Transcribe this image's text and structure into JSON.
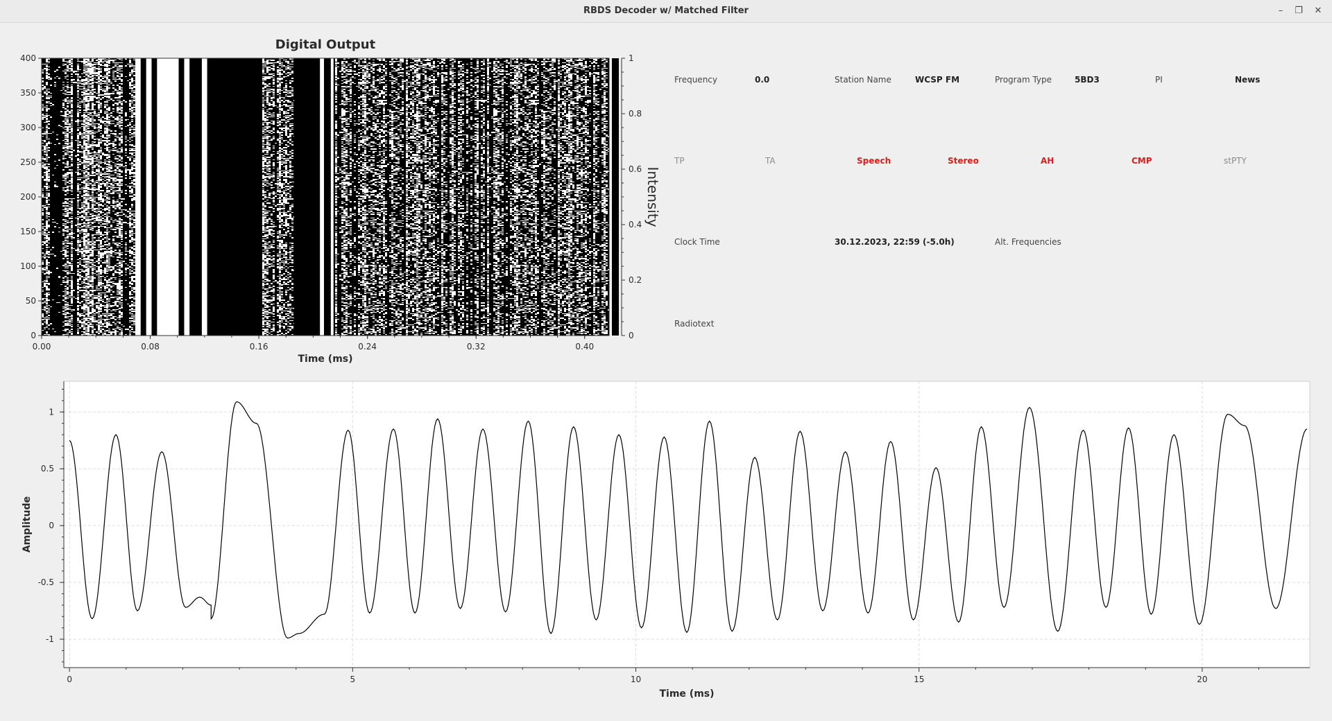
{
  "window": {
    "title": "RBDS Decoder w/ Matched Filter",
    "minimize_icon": "minimize-icon",
    "maximize_icon": "restore-icon",
    "close_icon": "close-icon"
  },
  "rds": {
    "frequency_label": "Frequency",
    "frequency_value": "0.0",
    "station_name_label": "Station Name",
    "station_name_value": "WCSP FM",
    "program_type_label": "Program Type",
    "program_type_value": "5BD3",
    "pi_label": "PI",
    "pi_value": "News",
    "flags": [
      {
        "label": "TP",
        "active": false
      },
      {
        "label": "TA",
        "active": false
      },
      {
        "label": "Speech",
        "active": true
      },
      {
        "label": "Stereo",
        "active": true
      },
      {
        "label": "AH",
        "active": true
      },
      {
        "label": "CMP",
        "active": true
      },
      {
        "label": "stPTY",
        "active": false
      }
    ],
    "clock_time_label": "Clock Time",
    "clock_time_value": "30.12.2023, 22:59 (-5.0h)",
    "alt_frequencies_label": "Alt. Frequencies",
    "radiotext_label": "Radiotext",
    "active_color": "#e01b1b",
    "inactive_color": "#8a8a8a"
  },
  "chart_data": [
    {
      "type": "heatmap",
      "title": "Digital Output",
      "xlabel": "Time (ms)",
      "ylabel": "",
      "colorbar_label": "Intensity",
      "xlim": [
        0,
        0.418
      ],
      "ylim": [
        0,
        400
      ],
      "x_ticks": [
        0.0,
        0.08,
        0.16,
        0.24,
        0.32,
        0.4
      ],
      "x_tick_labels": [
        "0.00",
        "0.08",
        "0.16",
        "0.24",
        "0.32",
        "0.40"
      ],
      "y_ticks": [
        0,
        50,
        100,
        150,
        200,
        250,
        300,
        350,
        400
      ],
      "y_tick_labels": [
        "0",
        "50",
        "100",
        "150",
        "200",
        "250",
        "300",
        "350",
        "400"
      ],
      "colorbar_ticks": [
        0,
        0.2,
        0.4,
        0.6,
        0.8,
        1
      ],
      "colorbar_tick_labels": [
        "0",
        "0.2",
        "0.4",
        "0.6",
        "0.8",
        "1"
      ],
      "colormap": [
        "#000000",
        "#ffffff"
      ],
      "solid_columns": [
        {
          "x0": 0.069,
          "x1": 0.073,
          "value": 1
        },
        {
          "x0": 0.073,
          "x1": 0.077,
          "value": 0
        },
        {
          "x0": 0.077,
          "x1": 0.081,
          "value": 1
        },
        {
          "x0": 0.081,
          "x1": 0.085,
          "value": 0
        },
        {
          "x0": 0.085,
          "x1": 0.101,
          "value": 1
        },
        {
          "x0": 0.101,
          "x1": 0.105,
          "value": 0
        },
        {
          "x0": 0.105,
          "x1": 0.109,
          "value": 1
        },
        {
          "x0": 0.109,
          "x1": 0.118,
          "value": 0
        },
        {
          "x0": 0.118,
          "x1": 0.122,
          "value": 1
        },
        {
          "x0": 0.122,
          "x1": 0.13,
          "value": 0
        },
        {
          "x0": 0.13,
          "x1": 0.162,
          "value": 0
        },
        {
          "x0": 0.186,
          "x1": 0.205,
          "value": 0
        },
        {
          "x0": 0.205,
          "x1": 0.208,
          "value": 1
        },
        {
          "x0": 0.208,
          "x1": 0.213,
          "value": 0
        },
        {
          "x0": 0.213,
          "x1": 0.215,
          "value": 1
        }
      ]
    },
    {
      "type": "line",
      "title": "",
      "xlabel": "Time (ms)",
      "ylabel": "Amplitude",
      "xlim": [
        -0.1,
        21.9
      ],
      "ylim": [
        -1.25,
        1.27
      ],
      "x_ticks": [
        0,
        5,
        10,
        15,
        20
      ],
      "x_tick_labels": [
        "0",
        "5",
        "10",
        "15",
        "20"
      ],
      "y_ticks": [
        -1,
        -0.5,
        0,
        0.5,
        1
      ],
      "y_tick_labels": [
        "-1",
        "-0.5",
        "0",
        "0.5",
        "1"
      ],
      "grid": true,
      "series": [
        {
          "color": "#000000",
          "extrema": [
            [
              0.0,
              0.75
            ],
            [
              0.4,
              -0.82
            ],
            [
              0.82,
              0.8
            ],
            [
              1.2,
              -0.75
            ],
            [
              1.63,
              0.65
            ],
            [
              2.05,
              -0.72
            ],
            [
              2.3,
              -0.63
            ],
            [
              2.5,
              -0.7
            ],
            [
              2.5,
              -0.82
            ],
            [
              2.95,
              1.09
            ],
            [
              3.3,
              0.9
            ],
            [
              3.85,
              -0.99
            ],
            [
              4.05,
              -0.95
            ],
            [
              4.5,
              -0.78
            ],
            [
              4.92,
              0.84
            ],
            [
              5.3,
              -0.77
            ],
            [
              5.72,
              0.85
            ],
            [
              6.1,
              -0.77
            ],
            [
              6.5,
              0.94
            ],
            [
              6.9,
              -0.73
            ],
            [
              7.3,
              0.85
            ],
            [
              7.7,
              -0.76
            ],
            [
              8.1,
              0.92
            ],
            [
              8.5,
              -0.95
            ],
            [
              8.9,
              0.87
            ],
            [
              9.3,
              -0.83
            ],
            [
              9.7,
              0.8
            ],
            [
              10.1,
              -0.9
            ],
            [
              10.5,
              0.78
            ],
            [
              10.9,
              -0.94
            ],
            [
              11.3,
              0.92
            ],
            [
              11.7,
              -0.93
            ],
            [
              12.1,
              0.6
            ],
            [
              12.5,
              -0.83
            ],
            [
              12.9,
              0.83
            ],
            [
              13.3,
              -0.75
            ],
            [
              13.7,
              0.65
            ],
            [
              14.1,
              -0.77
            ],
            [
              14.5,
              0.74
            ],
            [
              14.9,
              -0.83
            ],
            [
              15.3,
              0.51
            ],
            [
              15.7,
              -0.85
            ],
            [
              16.1,
              0.87
            ],
            [
              16.5,
              -0.72
            ],
            [
              16.95,
              1.04
            ],
            [
              17.45,
              -0.93
            ],
            [
              17.9,
              0.84
            ],
            [
              18.3,
              -0.72
            ],
            [
              18.7,
              0.86
            ],
            [
              19.1,
              -0.78
            ],
            [
              19.5,
              0.8
            ],
            [
              19.95,
              -0.87
            ],
            [
              20.45,
              0.98
            ],
            [
              20.75,
              0.88
            ],
            [
              21.3,
              -0.73
            ],
            [
              21.85,
              0.85
            ]
          ]
        }
      ]
    }
  ]
}
